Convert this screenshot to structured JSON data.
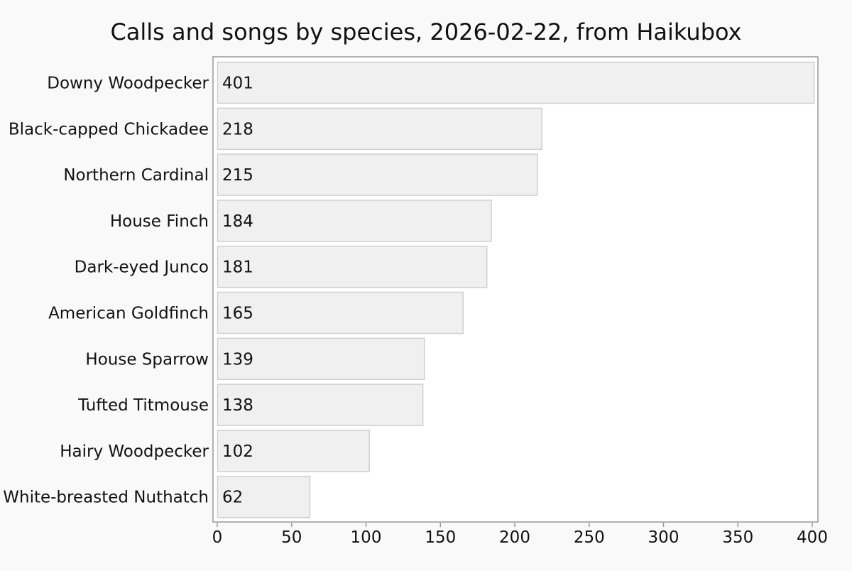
{
  "chart_data": {
    "type": "bar",
    "orientation": "horizontal",
    "title": "Calls and songs by species, 2026-02-22, from Haikubox",
    "xlabel": "",
    "ylabel": "",
    "categories": [
      "Downy Woodpecker",
      "Black-capped Chickadee",
      "Northern Cardinal",
      "House Finch",
      "Dark-eyed Junco",
      "American Goldfinch",
      "House Sparrow",
      "Tufted Titmouse",
      "Hairy Woodpecker",
      "White-breasted Nuthatch"
    ],
    "values": [
      401,
      218,
      215,
      184,
      181,
      165,
      139,
      138,
      102,
      62
    ],
    "xlim": [
      0,
      403
    ],
    "xticks": [
      0,
      50,
      100,
      150,
      200,
      250,
      300,
      350,
      400
    ],
    "data_labels": true,
    "grid": false,
    "legend": false,
    "colors": {
      "background": "#f9f9f9",
      "plot_background": "#ffffff",
      "bar_fill": "#f0f0f0",
      "bar_stroke": "#d0d0d0",
      "text": "#111111",
      "axis": "#999999"
    }
  }
}
